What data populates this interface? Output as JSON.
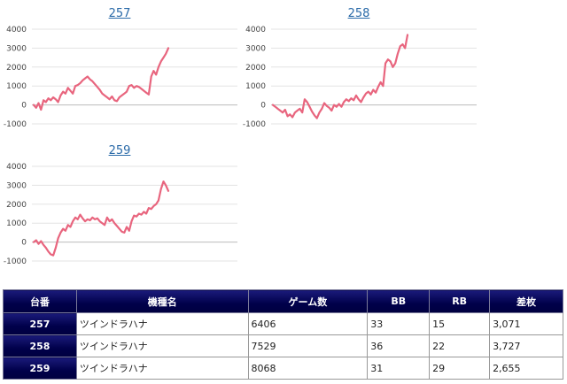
{
  "charts": [
    {
      "link_label": "257",
      "chart_data": {
        "type": "line",
        "yticks": [
          "4000",
          "3000",
          "2000",
          "1000",
          "0",
          "-1000"
        ],
        "ylim": [
          -1000,
          4000
        ],
        "grid": true,
        "legend": "none",
        "color": "#e8657e",
        "y": [
          0,
          -150,
          100,
          -250,
          250,
          150,
          350,
          250,
          400,
          300,
          150,
          500,
          700,
          600,
          900,
          750,
          600,
          1000,
          1050,
          1150,
          1300,
          1400,
          1500,
          1350,
          1250,
          1100,
          950,
          800,
          600,
          500,
          400,
          300,
          450,
          250,
          200,
          400,
          500,
          600,
          700,
          1000,
          1050,
          900,
          1000,
          950,
          850,
          750,
          650,
          550,
          1500,
          1800,
          1600,
          2000,
          2300,
          2500,
          2700,
          3000
        ]
      }
    },
    {
      "link_label": "258",
      "chart_data": {
        "type": "line",
        "yticks": [
          "4000",
          "3000",
          "2000",
          "1000",
          "0",
          "-1000"
        ],
        "ylim": [
          -1000,
          4000
        ],
        "grid": true,
        "legend": "none",
        "color": "#e8657e",
        "y": [
          0,
          -100,
          -200,
          -300,
          -400,
          -250,
          -600,
          -500,
          -650,
          -400,
          -300,
          -200,
          -400,
          300,
          150,
          -100,
          -350,
          -550,
          -700,
          -400,
          -200,
          100,
          -50,
          -150,
          -300,
          0,
          -100,
          50,
          -100,
          150,
          300,
          200,
          350,
          250,
          500,
          300,
          150,
          400,
          600,
          700,
          550,
          800,
          650,
          950,
          1200,
          1000,
          2200,
          2400,
          2300,
          2000,
          2200,
          2700,
          3100,
          3200,
          3000,
          3700
        ]
      }
    },
    {
      "link_label": "259",
      "chart_data": {
        "type": "line",
        "yticks": [
          "4000",
          "3000",
          "2000",
          "1000",
          "0",
          "-1000"
        ],
        "ylim": [
          -1000,
          4000
        ],
        "grid": true,
        "legend": "none",
        "color": "#e8657e",
        "y": [
          0,
          100,
          -100,
          50,
          -150,
          -300,
          -500,
          -650,
          -700,
          -300,
          200,
          500,
          700,
          600,
          900,
          800,
          1100,
          1300,
          1200,
          1450,
          1250,
          1100,
          1200,
          1150,
          1300,
          1200,
          1250,
          1100,
          1000,
          900,
          1300,
          1100,
          1200,
          1000,
          850,
          700,
          550,
          500,
          800,
          600,
          1100,
          1400,
          1350,
          1500,
          1450,
          1600,
          1500,
          1800,
          1750,
          1900,
          2000,
          2200,
          2800,
          3200,
          3000,
          2700
        ]
      }
    }
  ],
  "table": {
    "headers": [
      "台番",
      "機種名",
      "ゲーム数",
      "BB",
      "RB",
      "差枚"
    ],
    "rows": [
      [
        "257",
        "ツインドラハナ",
        "6406",
        "33",
        "15",
        "3,071"
      ],
      [
        "258",
        "ツインドラハナ",
        "7529",
        "36",
        "22",
        "3,727"
      ],
      [
        "259",
        "ツインドラハナ",
        "8068",
        "31",
        "29",
        "2,655"
      ]
    ]
  }
}
